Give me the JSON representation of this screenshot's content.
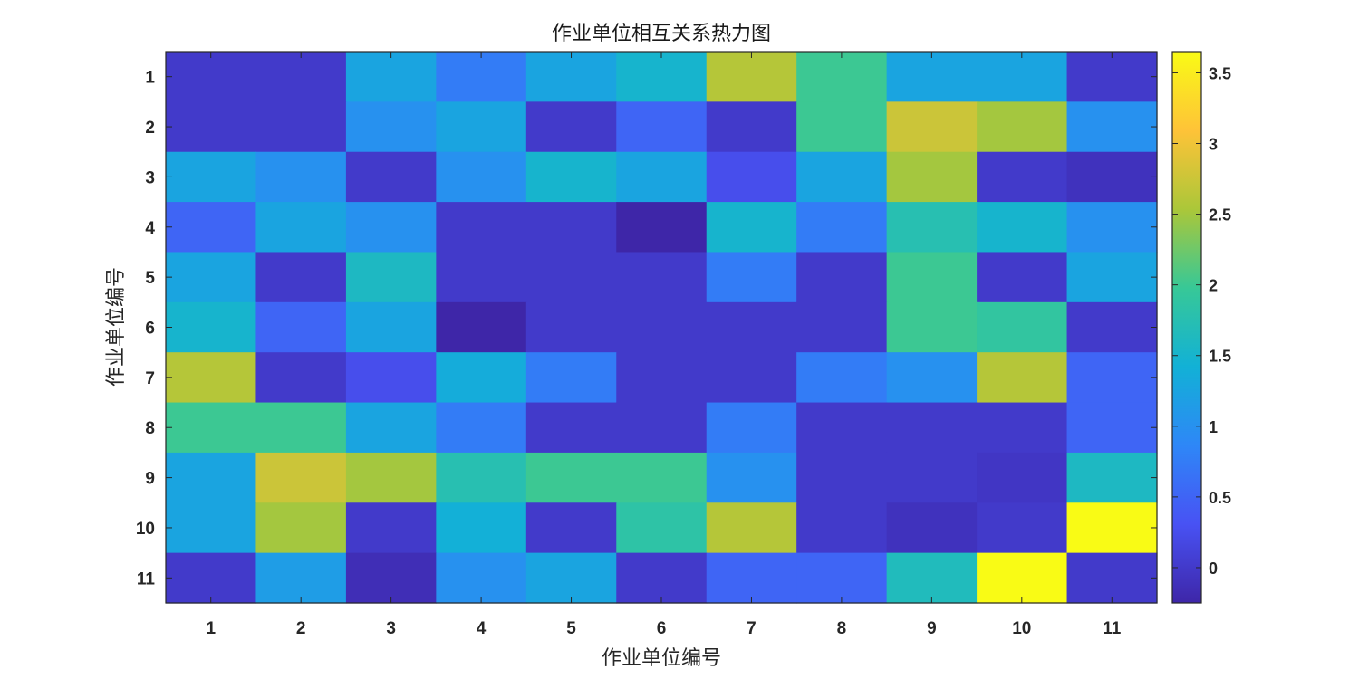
{
  "chart_data": {
    "type": "heatmap",
    "title": "作业单位相互关系热力图",
    "xlabel": "作业单位编号",
    "ylabel": "作业单位编号",
    "x_categories": [
      "1",
      "2",
      "3",
      "4",
      "5",
      "6",
      "7",
      "8",
      "9",
      "10",
      "11"
    ],
    "y_categories": [
      "1",
      "2",
      "3",
      "4",
      "5",
      "6",
      "7",
      "8",
      "9",
      "10",
      "11"
    ],
    "colormap": "parula",
    "clim": [
      -0.25,
      3.65
    ],
    "colorbar_ticks": [
      0,
      0.5,
      1,
      1.5,
      2,
      2.5,
      3,
      3.5
    ],
    "colorbar_tick_labels": [
      "0",
      "0.5",
      "1",
      "1.5",
      "2",
      "2.5",
      "3",
      "3.5"
    ],
    "matrix": [
      [
        0,
        0,
        1.25,
        0.75,
        1.25,
        1.5,
        2.6,
        2,
        1.25,
        1.25,
        0
      ],
      [
        0,
        0,
        1,
        1.25,
        0,
        0.5,
        0,
        2,
        2.75,
        2.5,
        1
      ],
      [
        1.25,
        1,
        0,
        1,
        1.5,
        1.25,
        0.25,
        1.25,
        2.5,
        0,
        -0.1
      ],
      [
        0.5,
        1.25,
        1,
        0,
        0,
        -0.25,
        1.5,
        0.75,
        1.75,
        1.5,
        1
      ],
      [
        1.25,
        0,
        1.6,
        0,
        0,
        0,
        0.75,
        0,
        2,
        0,
        1.25
      ],
      [
        1.5,
        0.5,
        1.25,
        -0.25,
        0,
        0,
        0,
        0,
        2,
        1.9,
        0
      ],
      [
        2.6,
        0,
        0.25,
        1.35,
        0.75,
        0,
        0,
        0.75,
        1,
        2.6,
        0.5
      ],
      [
        2,
        2,
        1.25,
        0.75,
        0,
        0,
        0.75,
        0,
        0,
        0,
        0.5
      ],
      [
        1.25,
        2.75,
        2.5,
        1.75,
        2,
        2,
        1,
        0,
        0,
        -0.05,
        1.6
      ],
      [
        1.25,
        2.5,
        0,
        1.4,
        0,
        1.85,
        2.6,
        0,
        -0.1,
        0,
        3.65
      ],
      [
        0,
        1.15,
        -0.15,
        1,
        1.25,
        0,
        0.5,
        0.5,
        1.65,
        3.65,
        0
      ]
    ]
  }
}
